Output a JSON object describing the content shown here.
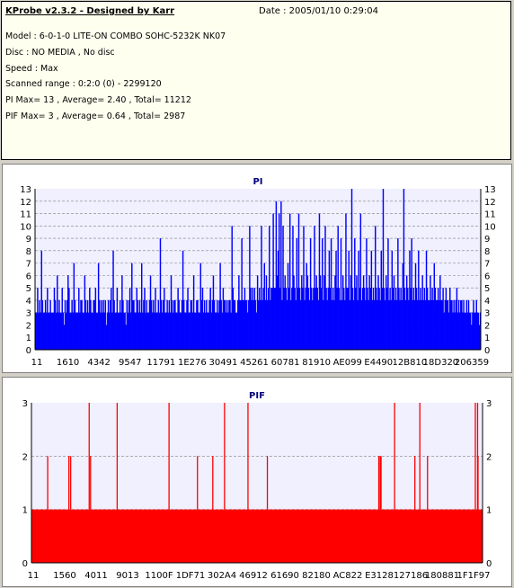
{
  "app": {
    "title": "KProbe v2.3.2 - Designed by Karr",
    "date": "Date : 2005/01/10 0:29:04"
  },
  "info": {
    "model": "Model : 6-0-1-0 LITE-ON COMBO SOHC-5232K NK07",
    "disc": "Disc : NO MEDIA , No disc",
    "speed": "Speed : Max",
    "range": "Scanned range : 0:2:0 (0) - 2299120",
    "pi": "PI Max= 13 , Average= 2.40 , Total= 11212",
    "pif": "PIF Max= 3 , Average= 0.64 , Total= 2987"
  },
  "colors": {
    "pi": "#0000ff",
    "pif": "#ff0000",
    "plot_bg": "#f0f0ff",
    "grid": "#808080"
  },
  "chart_data": [
    {
      "type": "bar",
      "title": "PI",
      "ylim": [
        0,
        13
      ],
      "yticks": [
        0,
        1,
        2,
        3,
        4,
        5,
        6,
        7,
        8,
        9,
        10,
        11,
        12,
        13
      ],
      "grid": true,
      "xtick_labels": [
        "11",
        "1610",
        "4342",
        "9547",
        "11791",
        "1E276",
        "30491",
        "45261",
        "60781",
        "81910",
        "AE099",
        "E4490",
        "12B810",
        "18D320",
        "206359"
      ],
      "series": [
        {
          "values": [
            3,
            3,
            5,
            3,
            4,
            3,
            8,
            4,
            3,
            3,
            4,
            3,
            5,
            3,
            3,
            4,
            3,
            3,
            3,
            5,
            4,
            3,
            6,
            3,
            4,
            3,
            3,
            5,
            3,
            2,
            4,
            3,
            4,
            6,
            5,
            3,
            3,
            4,
            3,
            7,
            4,
            3,
            3,
            3,
            5,
            3,
            4,
            4,
            3,
            3,
            6,
            4,
            3,
            4,
            3,
            5,
            4,
            3,
            3,
            4,
            4,
            5,
            3,
            3,
            7,
            4,
            3,
            4,
            3,
            4,
            3,
            4,
            2,
            3,
            4,
            3,
            4,
            5,
            3,
            8,
            4,
            3,
            3,
            5,
            3,
            3,
            4,
            3,
            6,
            4,
            3,
            3,
            2,
            4,
            3,
            4,
            5,
            3,
            7,
            4,
            4,
            3,
            3,
            5,
            4,
            3,
            4,
            3,
            7,
            3,
            4,
            5,
            3,
            4,
            3,
            3,
            4,
            6,
            4,
            3,
            4,
            3,
            5,
            3,
            3,
            4,
            3,
            9,
            4,
            3,
            4,
            5,
            3,
            3,
            4,
            3,
            4,
            3,
            6,
            4,
            3,
            4,
            4,
            3,
            3,
            5,
            4,
            3,
            3,
            4,
            8,
            4,
            3,
            3,
            4,
            5,
            3,
            3,
            4,
            4,
            3,
            6,
            3,
            3,
            4,
            4,
            3,
            3,
            7,
            4,
            5,
            3,
            4,
            3,
            4,
            3,
            3,
            4,
            5,
            3,
            4,
            6,
            4,
            3,
            3,
            4,
            3,
            4,
            7,
            4,
            3,
            5,
            4,
            4,
            3,
            4,
            3,
            4,
            4,
            3,
            10,
            5,
            4,
            4,
            3,
            3,
            4,
            6,
            4,
            4,
            9,
            4,
            4,
            5,
            4,
            4,
            3,
            4,
            10,
            5,
            4,
            5,
            4,
            5,
            4,
            3,
            6,
            4,
            5,
            4,
            10,
            4,
            5,
            7,
            4,
            6,
            4,
            5,
            10,
            4,
            5,
            5,
            11,
            5,
            5,
            12,
            6,
            8,
            11,
            5,
            12,
            4,
            10,
            5,
            6,
            5,
            4,
            7,
            5,
            11,
            4,
            5,
            10,
            6,
            5,
            4,
            9,
            5,
            11,
            5,
            4,
            6,
            5,
            10,
            4,
            5,
            7,
            6,
            5,
            4,
            9,
            5,
            4,
            5,
            10,
            5,
            6,
            5,
            4,
            11,
            6,
            5,
            9,
            4,
            6,
            10,
            5,
            4,
            5,
            8,
            5,
            9,
            4,
            5,
            4,
            6,
            8,
            5,
            10,
            5,
            4,
            9,
            4,
            6,
            5,
            4,
            11,
            5,
            5,
            8,
            4,
            6,
            13,
            5,
            4,
            9,
            5,
            6,
            4,
            8,
            5,
            11,
            4,
            5,
            6,
            5,
            4,
            9,
            5,
            4,
            6,
            5,
            8,
            4,
            5,
            4,
            10,
            5,
            4,
            6,
            5,
            4,
            8,
            5,
            13,
            5,
            4,
            6,
            5,
            9,
            4,
            5,
            4,
            8,
            5,
            6,
            4,
            5,
            4,
            9,
            5,
            4,
            5,
            4,
            7,
            13,
            5,
            4,
            6,
            5,
            4,
            8,
            5,
            9,
            4,
            5,
            4,
            7,
            5,
            4,
            8,
            4,
            5,
            4,
            6,
            4,
            5,
            4,
            8,
            5,
            4,
            4,
            6,
            4,
            5,
            4,
            7,
            5,
            4,
            4,
            5,
            4,
            6,
            4,
            4,
            5,
            3,
            4,
            5,
            4,
            4,
            3,
            5,
            4,
            4,
            3,
            4,
            3,
            4,
            5,
            3,
            4,
            3,
            4,
            4,
            3,
            4,
            3,
            3,
            4,
            3,
            4,
            3,
            3,
            2,
            3,
            4,
            3,
            3,
            4,
            3,
            3,
            2,
            3
          ]
        }
      ]
    },
    {
      "type": "bar",
      "title": "PIF",
      "ylim": [
        0,
        3
      ],
      "yticks": [
        0,
        1,
        2,
        3
      ],
      "grid": true,
      "xtick_labels": [
        "11",
        "1560",
        "4011",
        "9013",
        "1100F",
        "1DF71",
        "302A4",
        "46912",
        "61690",
        "82180",
        "AC822",
        "E3128",
        "127186",
        "180881",
        "1F1F97"
      ],
      "baseline": 1,
      "series": [
        {
          "spikes": [
            [
              0.036,
              2
            ],
            [
              0.083,
              2
            ],
            [
              0.087,
              2
            ],
            [
              0.128,
              3
            ],
            [
              0.131,
              2
            ],
            [
              0.19,
              3
            ],
            [
              0.305,
              3
            ],
            [
              0.368,
              2
            ],
            [
              0.402,
              2
            ],
            [
              0.428,
              3
            ],
            [
              0.48,
              3
            ],
            [
              0.523,
              2
            ],
            [
              0.77,
              2
            ],
            [
              0.773,
              2
            ],
            [
              0.775,
              2
            ],
            [
              0.805,
              3
            ],
            [
              0.85,
              2
            ],
            [
              0.861,
              3
            ],
            [
              0.878,
              2
            ],
            [
              0.984,
              3
            ],
            [
              0.989,
              3
            ],
            [
              0.99,
              2
            ]
          ]
        }
      ]
    }
  ]
}
